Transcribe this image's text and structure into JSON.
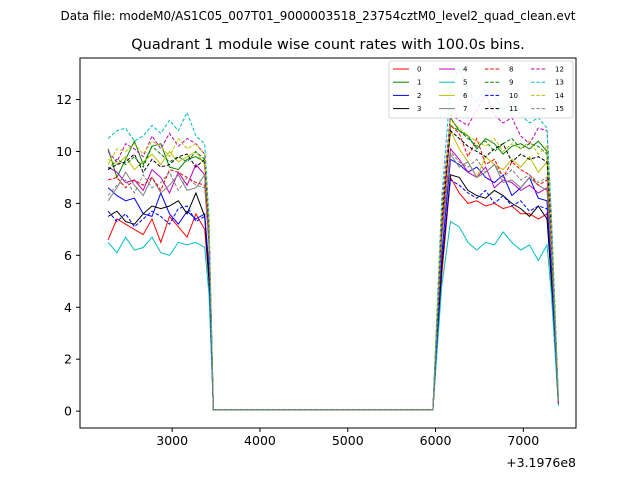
{
  "figure": {
    "suptitle": "Data file: modeM0/AS1C05_007T01_9000003518_23754cztM0_level2_quad_clean.evt",
    "title": "Quadrant 1 module wise count rates with 100.0s bins.",
    "x_offset_label": "+3.1976e8"
  },
  "chart_data": {
    "type": "line",
    "title": "Quadrant 1 module wise count rates with 100.0s bins.",
    "xlabel": "",
    "ylabel": "",
    "x_offset": "+3.1976e8",
    "xlim": [
      1950,
      7600
    ],
    "ylim": [
      -0.65,
      13.6
    ],
    "xticks": [
      3000,
      4000,
      5000,
      6000,
      7000
    ],
    "yticks": [
      0,
      2,
      4,
      6,
      8,
      10,
      12
    ],
    "grid": false,
    "legend_position": "top-right",
    "legend_columns": 4,
    "x": [
      2270,
      2370,
      2470,
      2570,
      2670,
      2770,
      2870,
      2970,
      3070,
      3170,
      3270,
      3370,
      3420,
      3470,
      3570,
      5870,
      5970,
      6070,
      6170,
      6270,
      6370,
      6470,
      6570,
      6670,
      6770,
      6870,
      6970,
      7070,
      7170,
      7270,
      7320,
      7400
    ],
    "series": [
      {
        "name": "0",
        "color": "#ff0000",
        "dash": "solid",
        "values": [
          6.6,
          7.4,
          7.2,
          7.0,
          6.8,
          7.4,
          6.5,
          7.5,
          7.1,
          6.7,
          7.6,
          7.0,
          5.0,
          0.05,
          0.05,
          0.05,
          0.05,
          5.2,
          9.0,
          8.4,
          8.0,
          8.1,
          7.9,
          8.0,
          7.8,
          7.9,
          7.6,
          7.6,
          7.4,
          7.6,
          5.0,
          0.3
        ]
      },
      {
        "name": "1",
        "color": "#008000",
        "dash": "solid",
        "values": [
          10.1,
          9.0,
          9.7,
          10.4,
          9.5,
          10.2,
          10.3,
          9.4,
          9.3,
          9.7,
          9.8,
          9.6,
          7.0,
          0.05,
          0.05,
          0.05,
          0.05,
          7.5,
          11.3,
          10.8,
          10.6,
          10.1,
          10.5,
          10.3,
          9.9,
          10.2,
          10.3,
          10.1,
          10.4,
          10.0,
          7.0,
          0.4
        ]
      },
      {
        "name": "2",
        "color": "#0000ff",
        "dash": "solid",
        "values": [
          8.6,
          8.3,
          8.1,
          8.2,
          7.6,
          7.5,
          8.4,
          7.6,
          7.2,
          7.7,
          7.4,
          7.6,
          5.5,
          0.05,
          0.05,
          0.05,
          0.05,
          6.0,
          9.7,
          9.5,
          9.2,
          9.4,
          9.0,
          8.8,
          9.1,
          8.3,
          8.6,
          9.0,
          8.2,
          8.1,
          5.5,
          0.3
        ]
      },
      {
        "name": "3",
        "color": "#000000",
        "dash": "solid",
        "values": [
          7.5,
          7.7,
          7.3,
          7.2,
          7.6,
          7.9,
          7.8,
          7.9,
          8.1,
          7.6,
          8.4,
          7.5,
          5.0,
          0.05,
          0.05,
          0.05,
          0.05,
          5.5,
          9.1,
          9.0,
          8.5,
          8.3,
          8.2,
          8.5,
          8.3,
          8.0,
          7.8,
          7.5,
          7.9,
          7.4,
          5.0,
          0.3
        ]
      },
      {
        "name": "4",
        "color": "#bf00bf",
        "dash": "solid",
        "values": [
          9.4,
          9.2,
          8.8,
          8.9,
          8.5,
          9.3,
          9.0,
          8.4,
          9.2,
          8.7,
          9.5,
          9.1,
          6.5,
          0.05,
          0.05,
          0.05,
          0.05,
          6.8,
          10.1,
          9.7,
          9.2,
          9.0,
          9.4,
          8.6,
          8.9,
          8.8,
          8.5,
          8.7,
          8.4,
          8.6,
          6.0,
          0.3
        ]
      },
      {
        "name": "5",
        "color": "#00bfbf",
        "dash": "solid",
        "values": [
          6.5,
          6.1,
          6.7,
          6.2,
          6.3,
          6.7,
          6.1,
          6.0,
          6.5,
          6.4,
          6.5,
          6.3,
          4.5,
          0.05,
          0.05,
          0.05,
          0.05,
          4.8,
          7.3,
          7.1,
          6.5,
          6.2,
          6.5,
          6.4,
          6.9,
          6.5,
          6.2,
          6.4,
          5.8,
          6.4,
          4.5,
          0.2
        ]
      },
      {
        "name": "6",
        "color": "#bfbf00",
        "dash": "solid",
        "values": [
          9.7,
          9.5,
          9.8,
          9.3,
          9.6,
          9.9,
          9.5,
          10.0,
          9.6,
          9.8,
          10.0,
          9.5,
          7.0,
          0.05,
          0.05,
          0.05,
          0.05,
          7.4,
          10.8,
          10.1,
          9.6,
          9.0,
          9.8,
          9.5,
          9.3,
          9.7,
          9.4,
          9.8,
          9.2,
          9.6,
          7.0,
          0.4
        ]
      },
      {
        "name": "7",
        "color": "#808080",
        "dash": "solid",
        "values": [
          8.1,
          8.6,
          9.2,
          8.7,
          8.3,
          9.0,
          8.4,
          8.7,
          9.1,
          8.5,
          8.6,
          9.1,
          6.5,
          0.05,
          0.05,
          0.05,
          0.05,
          6.6,
          9.9,
          9.4,
          9.6,
          9.0,
          9.2,
          9.5,
          8.8,
          8.9,
          8.6,
          9.0,
          8.7,
          8.5,
          6.0,
          0.3
        ]
      },
      {
        "name": "8",
        "color": "#ff0000",
        "dash": "dashed",
        "values": [
          8.9,
          9.0,
          8.6,
          8.9,
          8.7,
          9.0,
          8.5,
          9.3,
          9.2,
          9.0,
          8.8,
          8.7,
          6.5,
          0.05,
          0.05,
          0.05,
          0.05,
          6.8,
          11.0,
          10.7,
          9.8,
          10.5,
          9.5,
          9.7,
          9.0,
          9.6,
          9.3,
          9.1,
          8.7,
          8.9,
          6.5,
          0.3
        ]
      },
      {
        "name": "9",
        "color": "#008000",
        "dash": "dashed",
        "values": [
          9.3,
          9.7,
          9.5,
          9.8,
          9.4,
          10.2,
          9.9,
          9.6,
          9.8,
          9.6,
          10.0,
          9.7,
          7.0,
          0.05,
          0.05,
          0.05,
          0.05,
          7.5,
          11.0,
          10.8,
          10.5,
          10.2,
          10.4,
          10.0,
          10.3,
          10.5,
          10.1,
          10.3,
          10.2,
          9.9,
          7.0,
          0.4
        ]
      },
      {
        "name": "10",
        "color": "#0000ff",
        "dash": "dashed",
        "values": [
          7.7,
          7.3,
          7.6,
          7.1,
          7.4,
          7.7,
          7.5,
          7.2,
          7.8,
          7.9,
          7.3,
          7.5,
          5.5,
          0.05,
          0.05,
          0.05,
          0.05,
          5.8,
          8.9,
          8.7,
          8.4,
          8.2,
          8.5,
          8.0,
          8.3,
          7.9,
          8.1,
          7.7,
          7.9,
          7.8,
          5.5,
          0.3
        ]
      },
      {
        "name": "11",
        "color": "#000000",
        "dash": "dashed",
        "values": [
          9.3,
          9.5,
          9.6,
          9.9,
          9.2,
          9.7,
          9.4,
          9.5,
          9.8,
          9.9,
          9.4,
          9.7,
          7.0,
          0.05,
          0.05,
          0.05,
          0.05,
          7.3,
          10.8,
          10.5,
          10.2,
          10.0,
          9.8,
          10.1,
          10.3,
          9.6,
          9.9,
          9.7,
          9.8,
          9.6,
          7.0,
          0.4
        ]
      },
      {
        "name": "12",
        "color": "#bf00bf",
        "dash": "dashed",
        "values": [
          10.0,
          9.6,
          10.3,
          10.1,
          9.8,
          10.6,
          10.1,
          10.7,
          10.2,
          10.5,
          10.3,
          9.9,
          7.2,
          0.05,
          0.05,
          0.05,
          0.05,
          7.8,
          11.4,
          11.2,
          11.0,
          11.6,
          12.2,
          11.4,
          11.1,
          11.3,
          10.6,
          10.3,
          10.9,
          10.8,
          7.5,
          0.4
        ]
      },
      {
        "name": "13",
        "color": "#00bfbf",
        "dash": "dashed",
        "values": [
          10.5,
          10.8,
          10.9,
          10.4,
          10.6,
          11.0,
          10.7,
          11.2,
          10.8,
          11.5,
          10.6,
          10.3,
          7.5,
          0.05,
          0.05,
          0.05,
          0.05,
          8.2,
          12.5,
          13.2,
          12.3,
          11.9,
          12.4,
          12.1,
          11.6,
          11.9,
          11.4,
          11.1,
          11.3,
          10.9,
          7.5,
          0.5
        ]
      },
      {
        "name": "14",
        "color": "#bfbf00",
        "dash": "dashed",
        "values": [
          9.5,
          10.1,
          10.0,
          10.3,
          9.9,
          10.4,
          10.2,
          9.8,
          10.5,
          10.1,
          10.3,
          9.9,
          7.2,
          0.05,
          0.05,
          0.05,
          0.05,
          7.6,
          11.2,
          10.9,
          10.6,
          10.4,
          10.2,
          10.5,
          10.0,
          10.3,
          10.1,
          10.4,
          9.9,
          10.2,
          7.0,
          0.4
        ]
      },
      {
        "name": "15",
        "color": "#808080",
        "dash": "dashed",
        "values": [
          8.3,
          8.7,
          8.9,
          8.4,
          9.1,
          8.6,
          8.8,
          9.2,
          8.5,
          9.0,
          8.7,
          8.6,
          6.3,
          0.05,
          0.05,
          0.05,
          0.05,
          6.6,
          10.0,
          9.6,
          9.4,
          9.7,
          9.2,
          9.5,
          9.0,
          9.3,
          8.9,
          9.1,
          8.8,
          9.0,
          6.3,
          0.3
        ]
      }
    ]
  }
}
